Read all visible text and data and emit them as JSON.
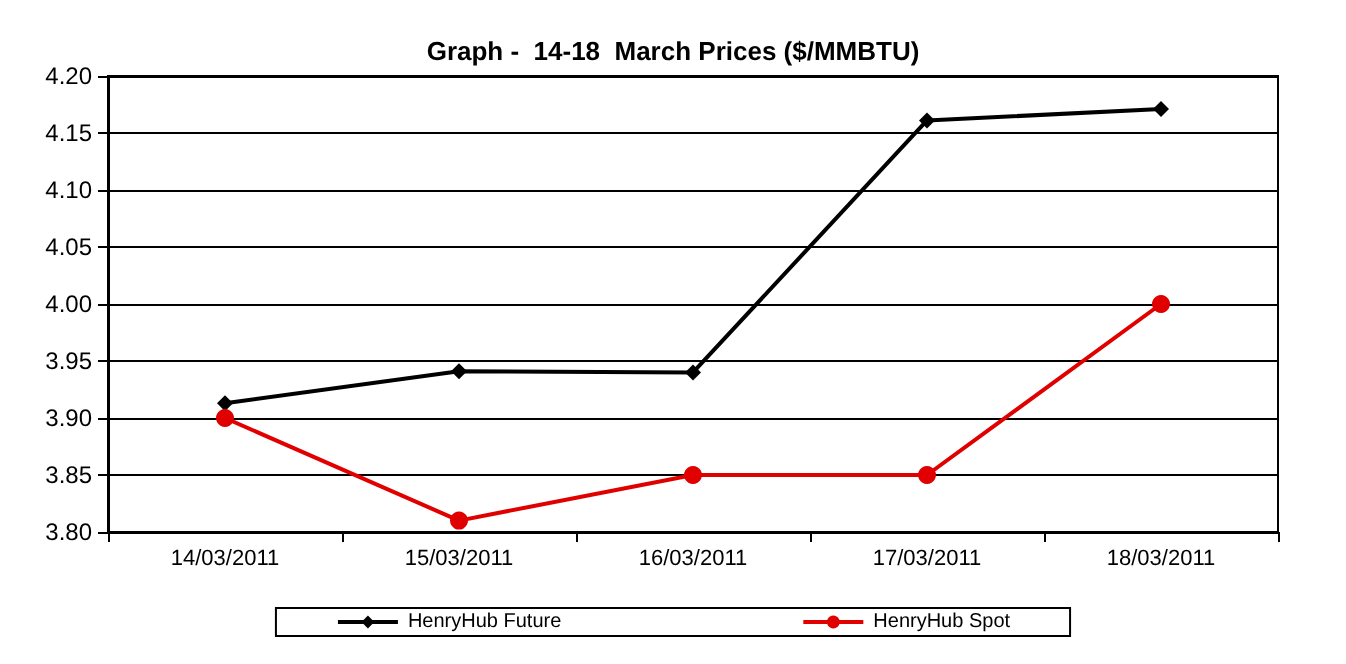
{
  "chart_data": {
    "type": "line",
    "title": "Graph -  14-18  March Prices ($/MMBTU)",
    "categories": [
      "14/03/2011",
      "15/03/2011",
      "16/03/2011",
      "17/03/2011",
      "18/03/2011"
    ],
    "series": [
      {
        "name": "HenryHub Future",
        "color": "#000000",
        "marker": "diamond",
        "values": [
          3.913,
          3.941,
          3.94,
          4.161,
          4.171
        ]
      },
      {
        "name": "HenryHub Spot",
        "color": "#e00000",
        "marker": "circle",
        "values": [
          3.9,
          3.81,
          3.85,
          3.85,
          4.0
        ]
      }
    ],
    "ylim": [
      3.8,
      4.2
    ],
    "yticks": [
      {
        "value": 3.8,
        "label": "3.80"
      },
      {
        "value": 3.85,
        "label": "3.85"
      },
      {
        "value": 3.9,
        "label": "3.90"
      },
      {
        "value": 3.95,
        "label": "3.95"
      },
      {
        "value": 4.0,
        "label": "4.00"
      },
      {
        "value": 4.05,
        "label": "4.05"
      },
      {
        "value": 4.1,
        "label": "4.10"
      },
      {
        "value": 4.15,
        "label": "4.15"
      },
      {
        "value": 4.2,
        "label": "4.20"
      }
    ],
    "grid": "y",
    "legend": "bottom",
    "line_style": "solid"
  }
}
